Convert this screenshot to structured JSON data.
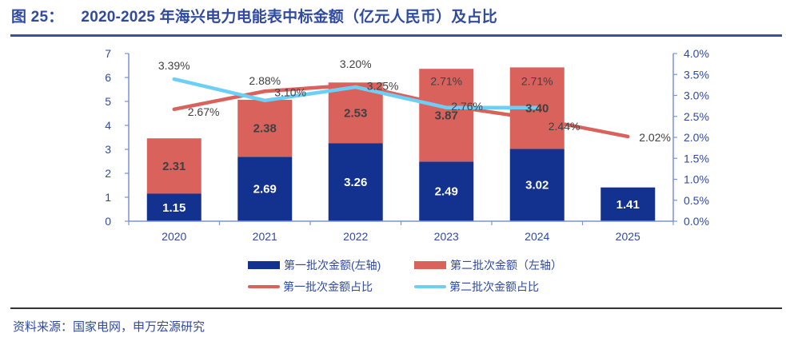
{
  "header": {
    "figure_number": "图 25：",
    "title": "2020-2025 年海兴电力电能表中标金额（亿元人民币）及占比"
  },
  "footer": {
    "source": "资料来源：国家电网，申万宏源研究"
  },
  "colors": {
    "first_batch_bar": "#13318f",
    "second_batch_bar": "#d9625d",
    "first_batch_share_line": "#d9625d",
    "second_batch_share_line": "#6ecff6",
    "axis": "#7a93d8",
    "axis_text": "#2f4aa0"
  },
  "chart_data": {
    "type": "bar",
    "subtype": "stacked bar + dual-axis line",
    "title": "2020-2025 年海兴电力电能表中标金额（亿元人民币）及占比",
    "categories": [
      "2020",
      "2021",
      "2022",
      "2023",
      "2024",
      "2025"
    ],
    "series": [
      {
        "name": "第一批次金额(左轴)",
        "type": "bar",
        "axis": "left",
        "stack": "amount",
        "values": [
          1.15,
          2.69,
          3.26,
          2.49,
          3.02,
          1.41
        ],
        "labels": [
          "1.15",
          "2.69",
          "3.26",
          "2.49",
          "3.02",
          "1.41"
        ]
      },
      {
        "name": "第二批次金额（左轴）",
        "type": "bar",
        "axis": "left",
        "stack": "amount",
        "values": [
          2.31,
          2.38,
          2.53,
          3.87,
          3.4,
          null
        ],
        "labels": [
          "2.31",
          "2.38",
          "2.53",
          "3.87",
          "3.40",
          null
        ]
      },
      {
        "name": "第一批次金额占比",
        "type": "line",
        "axis": "right",
        "values": [
          2.67,
          3.1,
          3.25,
          2.76,
          2.44,
          2.02
        ],
        "labels": [
          "2.67%",
          "3.10%",
          "3.25%",
          "2.76%",
          "2.44%",
          "2.02%"
        ]
      },
      {
        "name": "第二批次金额占比",
        "type": "line",
        "axis": "right",
        "values": [
          3.39,
          2.88,
          3.2,
          2.71,
          2.71,
          null
        ],
        "labels": [
          "3.39%",
          "2.88%",
          "3.20%",
          "2.71%",
          "2.71%",
          null
        ]
      }
    ],
    "left_axis": {
      "ylim": [
        0,
        7
      ],
      "ticks": [
        "0",
        "1",
        "2",
        "3",
        "4",
        "5",
        "6",
        "7"
      ],
      "unit": "亿元人民币"
    },
    "right_axis": {
      "ylim": [
        0,
        4.0
      ],
      "ticks": [
        "0.0%",
        "0.5%",
        "1.0%",
        "1.5%",
        "2.0%",
        "2.5%",
        "3.0%",
        "3.5%",
        "4.0%"
      ],
      "unit": "%"
    },
    "xlabel": "",
    "ylabel": "",
    "grid": false,
    "legend_position": "bottom"
  },
  "legend": [
    {
      "label": "第一批次金额(左轴)",
      "kind": "bar",
      "series": 0
    },
    {
      "label": "第二批次金额（左轴）",
      "kind": "bar",
      "series": 1
    },
    {
      "label": "第一批次金额占比",
      "kind": "line",
      "series": 2
    },
    {
      "label": "第二批次金额占比",
      "kind": "line",
      "series": 3
    }
  ]
}
